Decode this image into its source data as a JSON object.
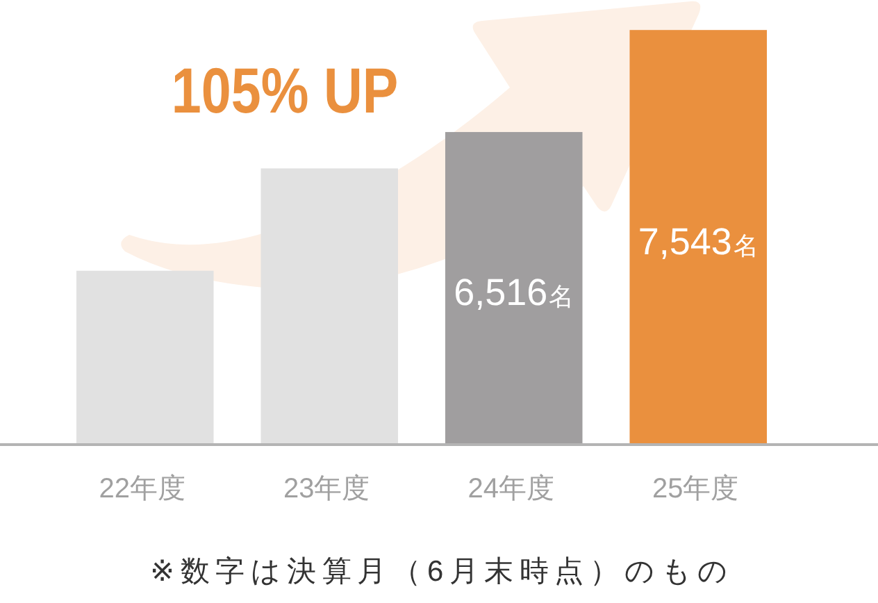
{
  "chart_data": {
    "type": "bar",
    "categories": [
      "22年度",
      "23年度",
      "24年度",
      "25年度"
    ],
    "values": [
      5120,
      6150,
      6516,
      7543
    ],
    "colors": [
      "#e1e1e1",
      "#e1e1e1",
      "#a09e9f",
      "#ea903e"
    ],
    "value_labels": [
      null,
      null,
      "6,516名",
      "7,543名"
    ],
    "ylim": [
      3370,
      7543
    ],
    "tick_labels": "x",
    "annotations": [
      "105% UP",
      "※数字は決算月（6月末時点）のもの"
    ]
  }
}
